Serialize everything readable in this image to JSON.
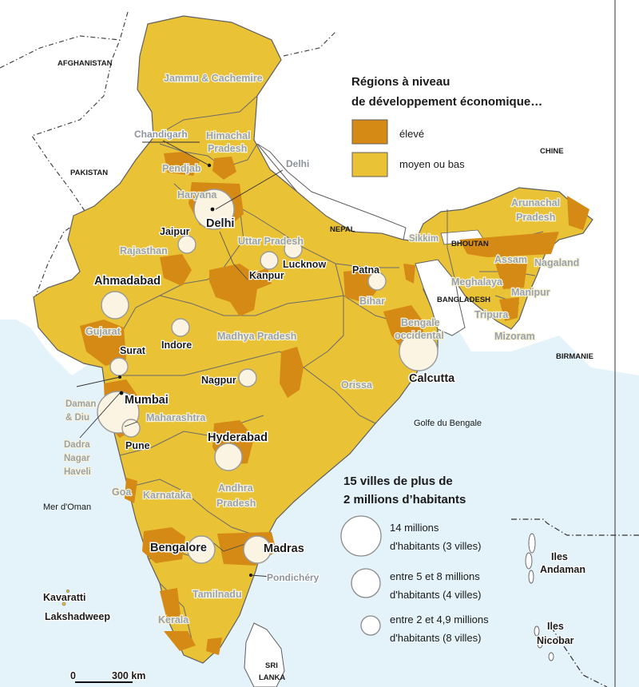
{
  "legend": {
    "regions_title_1": "Régions à niveau",
    "regions_title_2": "de développement économique…",
    "high_label": "élevé",
    "low_label": "moyen ou bas",
    "cities_title_1": "15 villes de plus de",
    "cities_title_2": "2 millions d’habitants",
    "size_1a": "14 millions",
    "size_1b": "d'habitants (3 villes)",
    "size_2a": "entre 5 et 8 millions",
    "size_2b": "d'habitants (4 villes)",
    "size_3a": "entre 2 et 4,9 millions",
    "size_3b": "d'habitants (8 villes)"
  },
  "colors": {
    "high": "#d58a16",
    "low": "#e9c236",
    "sea": "#e4f2f9",
    "land_other": "#ffffff",
    "border": "#5f5f5f",
    "city_fill": "#fbf4e3"
  },
  "countries": {
    "afghanistan": "AFGHANISTAN",
    "pakistan": "PAKISTAN",
    "nepal": "NEPAL",
    "chine": "CHINE",
    "bhoutan": "BHOUTAN",
    "bangladesh": "BANGLADESH",
    "birmanie": "BIRMANIE",
    "sri_lanka_1": "SRI",
    "sri_lanka_2": "LANKA"
  },
  "seas": {
    "golfe": "Golfe du Bengale",
    "oman": "Mer d'Oman"
  },
  "islands": {
    "kavaratti": "Kavaratti",
    "lakshadweep": "Lakshadweep",
    "andaman_1": "Iles",
    "andaman_2": "Andaman",
    "nicobar_1": "Iles",
    "nicobar_2": "Nicobar"
  },
  "states": {
    "jammu": "Jammu & Cachemire",
    "himachal_1": "Himachal",
    "himachal_2": "Pradesh",
    "pendjab": "Pendjab",
    "haryana": "Haryana",
    "rajasthan": "Rajasthan",
    "uttar": "Uttar Pradesh",
    "gujarat": "Gujarat",
    "madhya": "Madhya Pradesh",
    "bihar": "Bihar",
    "bengale_1": "Bengale",
    "bengale_2": "occidental",
    "orissa": "Orissa",
    "maharashtra": "Maharashtra",
    "karnataka": "Karnataka",
    "andhra_1": "Andhra",
    "andhra_2": "Pradesh",
    "tamilnadu": "Tamilnadu",
    "kerala": "Kerala",
    "goa": "Goa",
    "sikkim": "Sikkim",
    "arunachal_1": "Arunachal",
    "arunachal_2": "Pradesh",
    "assam": "Assam",
    "nagaland": "Nagaland",
    "meghalaya": "Meghalaya",
    "manipur": "Manipur",
    "tripura": "Tripura",
    "mizoram": "Mizoram",
    "daman_1": "Daman",
    "daman_2": "& Diu",
    "dadra_1": "Dadra",
    "dadra_2": "Nagar",
    "dadra_3": "Haveli"
  },
  "cities": {
    "delhi": "Delhi",
    "delhi_callout": "Delhi",
    "chandigarh": "Chandigarh",
    "jaipur": "Jaipur",
    "lucknow": "Lucknow",
    "kanpur": "Kanpur",
    "patna": "Patna",
    "ahmadabad": "Ahmadabad",
    "surat": "Surat",
    "indore": "Indore",
    "nagpur": "Nagpur",
    "calcutta": "Calcutta",
    "mumbai": "Mumbai",
    "pune": "Pune",
    "hyderabad": "Hyderabad",
    "bengalore": "Bengalore",
    "madras": "Madras",
    "pondichery": "Pondichéry"
  },
  "scale": {
    "zero": "0",
    "distance": "300 km"
  }
}
